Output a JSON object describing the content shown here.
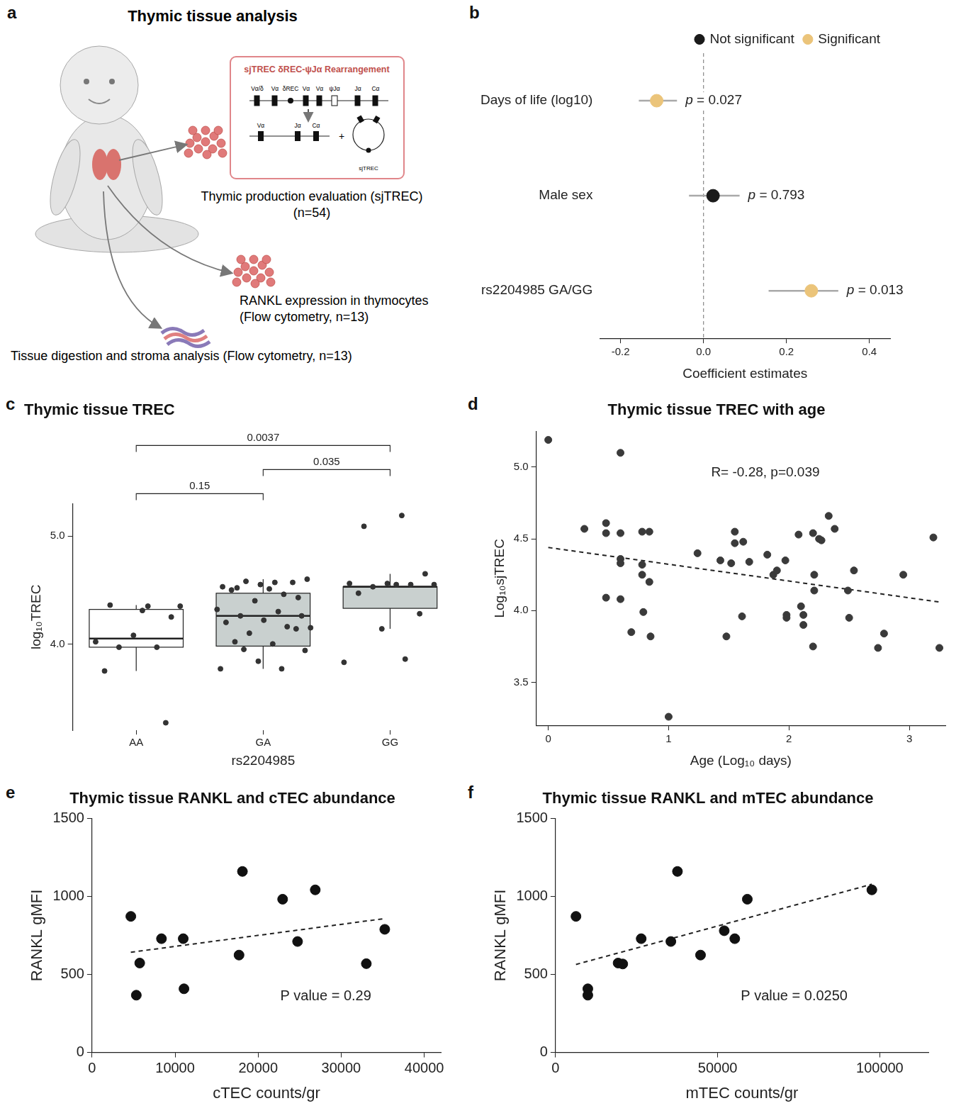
{
  "diagram": {
    "panel": "a",
    "title": "Thymic tissue analysis",
    "rearrangement_box": {
      "title": "sjTREC δREC-ψJα Rearrangement",
      "germline_segments": [
        "Vα/δ",
        "Vα",
        "δREC",
        "Vα",
        "Vα",
        "ψJα",
        "Jα",
        "Cα"
      ],
      "rearranged_segments": [
        "Vα",
        "Jα",
        "Cα"
      ],
      "joiner": "+",
      "circle_label": "sjTREC"
    },
    "outputs": [
      {
        "label": "Thymic production evaluation (sjTREC)",
        "n_label": "(n=54)"
      },
      {
        "label": "RANKL expression in thymocytes",
        "n_label": "(Flow cytometry, n=13)"
      },
      {
        "label": "Tissue digestion and stroma analysis (Flow cytometry, n=13)"
      }
    ]
  },
  "chart_data": [
    {
      "panel": "b",
      "type": "forest",
      "categories": [
        "Days of life (log10)",
        "Male sex",
        "rs2204985 GA/GG"
      ],
      "series": [
        {
          "name": "Not significant",
          "color": "#1a1a1a",
          "values": [
            null,
            0.023,
            null
          ],
          "ci_low": [
            null,
            -0.035,
            null
          ],
          "ci_high": [
            null,
            0.087,
            null
          ]
        },
        {
          "name": "Significant",
          "color": "#EBC47A",
          "values": [
            -0.113,
            null,
            0.26
          ],
          "ci_low": [
            -0.156,
            null,
            0.157
          ],
          "ci_high": [
            -0.064,
            null,
            0.325
          ]
        }
      ],
      "p_labels": [
        "p = 0.027",
        "p = 0.793",
        "p = 0.013"
      ],
      "reference_line": 0,
      "xlabel": "Coefficient estimates",
      "xlim": [
        -0.25,
        0.45
      ],
      "xticks": [
        -0.2,
        {
          "value": 0,
          "label": "0.0"
        },
        0.2,
        0.4
      ],
      "legend": "top-right",
      "grid": false
    },
    {
      "panel": "c",
      "type": "box",
      "title": "Thymic tissue TREC",
      "categories": [
        "AA",
        "GA",
        "GG"
      ],
      "colors": [
        "#ffffff",
        "#c9d0cf",
        "#c9d0cf"
      ],
      "boxes": [
        {
          "whisker_low": 3.75,
          "q1": 3.97,
          "median": 4.05,
          "q3": 4.32,
          "whisker_high": 4.36
        },
        {
          "whisker_low": 3.77,
          "q1": 3.98,
          "median": 4.26,
          "q3": 4.47,
          "whisker_high": 4.6
        },
        {
          "whisker_low": 4.14,
          "q1": 4.33,
          "median": 4.53,
          "q3": 4.53,
          "whisker_high": 4.65
        }
      ],
      "points": [
        [
          4.35,
          4.36,
          4.25,
          4.08,
          4.02,
          3.97,
          3.97,
          4.35,
          4.31,
          3.75,
          3.27
        ],
        [
          4.57,
          4.52,
          4.43,
          4.55,
          4.53,
          4.46,
          4.58,
          4.6,
          4.51,
          4.5,
          4.57,
          4.4,
          4.32,
          4.3,
          4.26,
          4.26,
          4.22,
          4.2,
          4.16,
          4.1,
          4.15,
          4.0,
          4.02,
          4.14,
          3.84,
          3.77,
          3.77,
          3.95,
          3.94
        ],
        [
          5.19,
          5.09,
          4.65,
          4.56,
          4.56,
          4.55,
          4.53,
          4.55,
          4.55,
          4.47,
          4.28,
          4.14,
          3.83,
          3.86
        ]
      ],
      "color": "#333333",
      "comparisons": [
        {
          "groups": [
            "AA",
            "GA"
          ],
          "label": "0.15"
        },
        {
          "groups": [
            "GA",
            "GG"
          ],
          "label": "0.035"
        },
        {
          "groups": [
            "AA",
            "GG"
          ],
          "label": "0.0037"
        }
      ],
      "xlabel": "rs2204985",
      "ylabel": "log₁₀TREC",
      "ylim": [
        3.2,
        5.3
      ],
      "yticks": [
        {
          "value": 4,
          "label": "4.0"
        },
        {
          "value": 5,
          "label": "5.0"
        }
      ],
      "grid": false
    },
    {
      "panel": "d",
      "type": "scatter",
      "title": "Thymic tissue TREC with age",
      "x": [
        0,
        0.6,
        0.3,
        0.48,
        0.48,
        0.6,
        0.6,
        0.6,
        0.48,
        0.6,
        0.69,
        0.78,
        0.78,
        0.78,
        0.79,
        0.84,
        0.84,
        0.85,
        1.0,
        1.24,
        1.43,
        1.48,
        1.52,
        1.55,
        1.55,
        1.62,
        1.61,
        1.67,
        1.82,
        1.87,
        1.9,
        1.97,
        1.98,
        1.98,
        2.08,
        2.1,
        2.12,
        2.12,
        2.2,
        2.2,
        2.21,
        2.21,
        2.25,
        2.27,
        2.33,
        2.38,
        2.49,
        2.5,
        2.54,
        2.74,
        2.79,
        2.95,
        3.2,
        3.25
      ],
      "values": [
        5.19,
        5.1,
        4.57,
        4.61,
        4.54,
        4.54,
        4.36,
        4.33,
        4.09,
        4.08,
        3.85,
        4.55,
        4.32,
        4.25,
        3.99,
        4.55,
        4.2,
        3.82,
        3.26,
        4.4,
        4.35,
        3.82,
        4.33,
        4.55,
        4.47,
        4.48,
        3.96,
        4.34,
        4.39,
        4.25,
        4.28,
        4.35,
        3.97,
        3.95,
        4.53,
        4.03,
        3.9,
        3.97,
        4.54,
        3.75,
        4.14,
        4.25,
        4.5,
        4.49,
        4.66,
        4.57,
        4.14,
        3.95,
        4.28,
        3.74,
        3.84,
        4.25,
        4.51,
        3.74
      ],
      "trend": {
        "x": [
          0,
          3.25
        ],
        "values": [
          4.44,
          4.06
        ],
        "line_style": "dashed"
      },
      "annotation": "R= -0.28, p=0.039",
      "xlabel": "Age (Log₁₀ days)",
      "ylabel": "Log₁₀sjTREC",
      "xlim": [
        -0.1,
        3.3
      ],
      "ylim": [
        3.2,
        5.25
      ],
      "xticks": [
        0,
        1,
        2,
        3
      ],
      "yticks": [
        3.5,
        {
          "value": 4,
          "label": "4.0"
        },
        4.5,
        {
          "value": 5,
          "label": "5.0"
        }
      ],
      "color": "#3a3a3a",
      "grid": false
    },
    {
      "panel": "e",
      "type": "scatter",
      "title": "Thymic tissue RANKL and cTEC abundance",
      "x": [
        4670,
        5330,
        5740,
        8360,
        10980,
        11070,
        17700,
        18110,
        22950,
        24750,
        26880,
        33030,
        35250
      ],
      "values": [
        872,
        367,
        573,
        729,
        729,
        408,
        624,
        1160,
        982,
        711,
        1042,
        569,
        789
      ],
      "trend": {
        "x": [
          4670,
          35250
        ],
        "values": [
          642,
          858
        ],
        "line_style": "dashed"
      },
      "annotation": "P value = 0.29",
      "xlabel": "cTEC counts/gr",
      "ylabel": "RANKL gMFI",
      "xlim": [
        0,
        42000
      ],
      "ylim": [
        0,
        1500
      ],
      "xticks": [
        0,
        10000,
        20000,
        30000,
        40000
      ],
      "yticks": [
        0,
        500,
        1000,
        1500
      ],
      "color": "#111111",
      "grid": false
    },
    {
      "panel": "f",
      "type": "scatter",
      "title": "Thymic tissue RANKL and mTEC abundance",
      "x": [
        6300,
        9960,
        9960,
        19300,
        20730,
        26420,
        35570,
        37600,
        44720,
        52030,
        55280,
        59150,
        97560
      ],
      "values": [
        872,
        408,
        367,
        573,
        567,
        729,
        711,
        1160,
        624,
        780,
        729,
        982,
        1042
      ],
      "trend": {
        "x": [
          6300,
          97560
        ],
        "values": [
          564,
          1078
        ],
        "line_style": "dashed"
      },
      "annotation": "P value = 0.0250",
      "xlabel": "mTEC counts/gr",
      "ylabel": "RANKL gMFI",
      "xlim": [
        0,
        115000
      ],
      "ylim": [
        0,
        1500
      ],
      "xticks": [
        0,
        50000,
        100000
      ],
      "yticks": [
        0,
        500,
        1000,
        1500
      ],
      "color": "#111111",
      "grid": false
    }
  ]
}
